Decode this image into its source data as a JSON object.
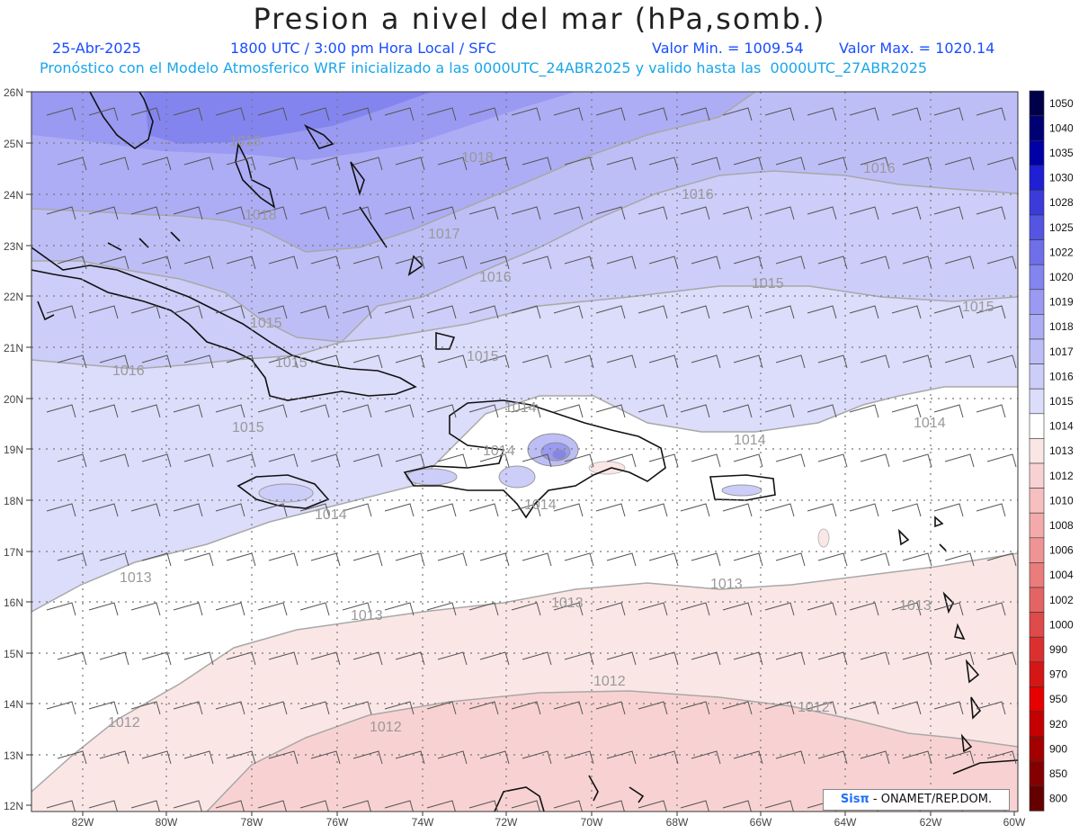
{
  "header": {
    "title": "Presion a nivel del mar (hPa,somb.)",
    "date": "25-Abr-2025",
    "time": "1800 UTC / 3:00 pm Hora Local / SFC",
    "min_label": "Valor Min. = 1009.54",
    "max_label": "Valor Max. = 1020.14",
    "subtitle": "Pronóstico con el Modelo Atmosferico WRF inicializado a las 0000UTC_24ABR2025 y valido hasta las  0000UTC_27ABR2025"
  },
  "axes": {
    "lat_labels": [
      "26N",
      "25N",
      "24N",
      "23N",
      "22N",
      "21N",
      "20N",
      "19N",
      "18N",
      "17N",
      "16N",
      "15N",
      "14N",
      "13N",
      "12N"
    ],
    "lon_labels": [
      "82W",
      "80W",
      "78W",
      "76W",
      "74W",
      "72W",
      "70W",
      "68W",
      "66W",
      "64W",
      "62W",
      "60W"
    ]
  },
  "colorbar": {
    "levels": [
      "1050",
      "1040",
      "1035",
      "1030",
      "1028",
      "1025",
      "1022",
      "1020",
      "1019",
      "1018",
      "1017",
      "1016",
      "1015",
      "1014",
      "1013",
      "1012",
      "1010",
      "1008",
      "1006",
      "1004",
      "1002",
      "1000",
      "990",
      "970",
      "950",
      "920",
      "900",
      "850",
      "800"
    ],
    "colors": [
      "#00004a",
      "#000075",
      "#0000a6",
      "#1f1fd4",
      "#3b3bdc",
      "#5555e3",
      "#6f6fe9",
      "#8484ef",
      "#9a9af2",
      "#adadf5",
      "#bebef7",
      "#cdcdf9",
      "#dcdcfb",
      "#ffffff",
      "#fbe6e6",
      "#f8d2d2",
      "#f6c0c0",
      "#f2aaaa",
      "#ee9494",
      "#ea7c7c",
      "#e46464",
      "#df4a4a",
      "#da3030",
      "#d51616",
      "#e60000",
      "#c40000",
      "#a40000",
      "#840000",
      "#640000"
    ]
  },
  "contour_labels": [
    {
      "text": "1018"
    },
    {
      "text": "1018"
    },
    {
      "text": "1018"
    },
    {
      "text": "1017"
    },
    {
      "text": "1016"
    },
    {
      "text": "1016"
    },
    {
      "text": "1016"
    },
    {
      "text": "1016"
    },
    {
      "text": "1015"
    },
    {
      "text": "1015"
    },
    {
      "text": "1015"
    },
    {
      "text": "1015"
    },
    {
      "text": "1015"
    },
    {
      "text": "1015"
    },
    {
      "text": "1014"
    },
    {
      "text": "1014"
    },
    {
      "text": "1014"
    },
    {
      "text": "1014"
    },
    {
      "text": "1014"
    },
    {
      "text": "1014"
    },
    {
      "text": "1013"
    },
    {
      "text": "1013"
    },
    {
      "text": "1013"
    },
    {
      "text": "1013"
    },
    {
      "text": "1013"
    },
    {
      "text": "1012"
    },
    {
      "text": "1012"
    },
    {
      "text": "1012"
    }
  ],
  "credit": {
    "logo": "Sisπ",
    "text": " - ONAMET/REP.DOM."
  }
}
